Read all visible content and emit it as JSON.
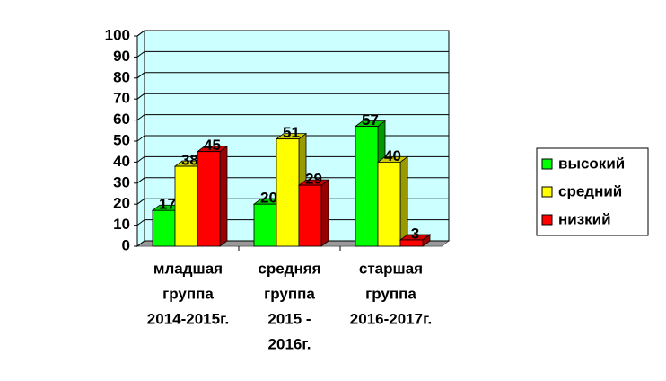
{
  "chart_data": {
    "type": "bar3d",
    "categories": [
      [
        "младшая",
        "группа",
        "2014-2015г."
      ],
      [
        "средняя",
        "группа",
        "2015 -",
        "2016г."
      ],
      [
        "старшая",
        "группа",
        "2016-2017г."
      ]
    ],
    "series": [
      {
        "name": "высокий",
        "color": "#00ff00",
        "values": [
          17,
          20,
          57
        ]
      },
      {
        "name": "средний",
        "color": "#ffff00",
        "values": [
          38,
          51,
          40
        ]
      },
      {
        "name": "низкий",
        "color": "#ff0000",
        "values": [
          45,
          29,
          3
        ]
      }
    ],
    "ylim": [
      0,
      100
    ],
    "yticks": [
      0,
      10,
      20,
      30,
      40,
      50,
      60,
      70,
      80,
      90,
      100
    ],
    "grid": true,
    "legend": "right",
    "wall_color": "#ccffff"
  }
}
